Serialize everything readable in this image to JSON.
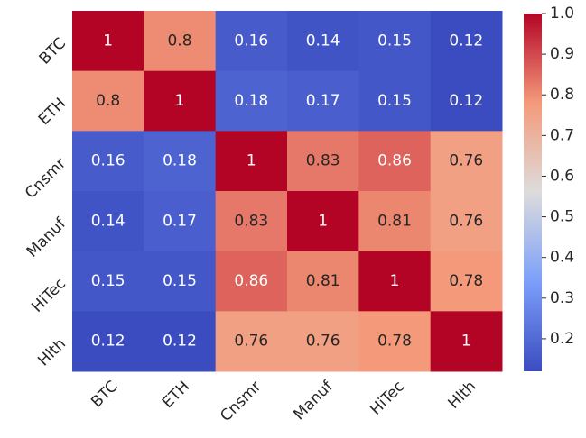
{
  "chart_data": {
    "type": "heatmap",
    "categories": [
      "BTC",
      "ETH",
      "Cnsmr",
      "Manuf",
      "HiTec",
      "Hlth"
    ],
    "values": [
      [
        1,
        0.8,
        0.16,
        0.14,
        0.15,
        0.12
      ],
      [
        0.8,
        1,
        0.18,
        0.17,
        0.15,
        0.12
      ],
      [
        0.16,
        0.18,
        1,
        0.83,
        0.86,
        0.76
      ],
      [
        0.14,
        0.17,
        0.83,
        1,
        0.81,
        0.76
      ],
      [
        0.15,
        0.15,
        0.86,
        0.81,
        1,
        0.78
      ],
      [
        0.12,
        0.12,
        0.76,
        0.76,
        0.78,
        1
      ]
    ],
    "colormap": [
      "#3b4cc0",
      "#7b9ff9",
      "#dddcdc",
      "#f49a7b",
      "#b40426"
    ],
    "clim": [
      0.12,
      1
    ],
    "cticks": [
      0.2,
      0.3,
      0.4,
      0.5,
      0.6,
      0.7,
      0.8,
      0.9,
      {
        "value": 1,
        "label": "1.0"
      }
    ]
  }
}
